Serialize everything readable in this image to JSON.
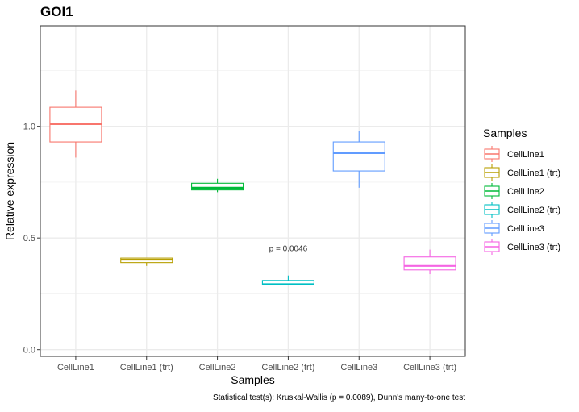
{
  "chart_data": {
    "type": "boxplot",
    "title": "GOI1",
    "xlabel": "Samples",
    "ylabel": "Relative expression",
    "ylim": [
      -0.03,
      1.45
    ],
    "yticks": [
      0.0,
      0.5,
      1.0
    ],
    "ytick_labels": [
      "0.0",
      "0.5",
      "1.0"
    ],
    "grid": true,
    "categories": [
      "CellLine1",
      "CellLine1 (trt)",
      "CellLine2",
      "CellLine2 (trt)",
      "CellLine3",
      "CellLine3 (trt)"
    ],
    "colors": [
      "#F8766D",
      "#B79F00",
      "#00BA38",
      "#00BFC4",
      "#619CFF",
      "#F564E3"
    ],
    "boxes": [
      {
        "name": "CellLine1",
        "whisker_low": 0.86,
        "q1": 0.93,
        "median": 1.01,
        "q3": 1.085,
        "whisker_high": 1.16
      },
      {
        "name": "CellLine1 (trt)",
        "whisker_low": 0.375,
        "q1": 0.39,
        "median": 0.403,
        "q3": 0.41,
        "whisker_high": 0.41
      },
      {
        "name": "CellLine2",
        "whisker_low": 0.705,
        "q1": 0.715,
        "median": 0.725,
        "q3": 0.745,
        "whisker_high": 0.765
      },
      {
        "name": "CellLine2 (trt)",
        "whisker_low": 0.29,
        "q1": 0.29,
        "median": 0.293,
        "q3": 0.31,
        "whisker_high": 0.332
      },
      {
        "name": "CellLine3",
        "whisker_low": 0.725,
        "q1": 0.8,
        "median": 0.88,
        "q3": 0.93,
        "whisker_high": 0.98
      },
      {
        "name": "CellLine3 (trt)",
        "whisker_low": 0.338,
        "q1": 0.357,
        "median": 0.375,
        "q3": 0.415,
        "whisker_high": 0.448
      }
    ],
    "annotation": {
      "text": "p = 0.0046",
      "category": "CellLine2 (trt)",
      "y": 0.42
    },
    "legend": {
      "title": "Samples",
      "position": "right"
    },
    "caption": "Statistical test(s): Kruskal-Wallis (p = 0.0089), Dunn's many-to-one test"
  }
}
